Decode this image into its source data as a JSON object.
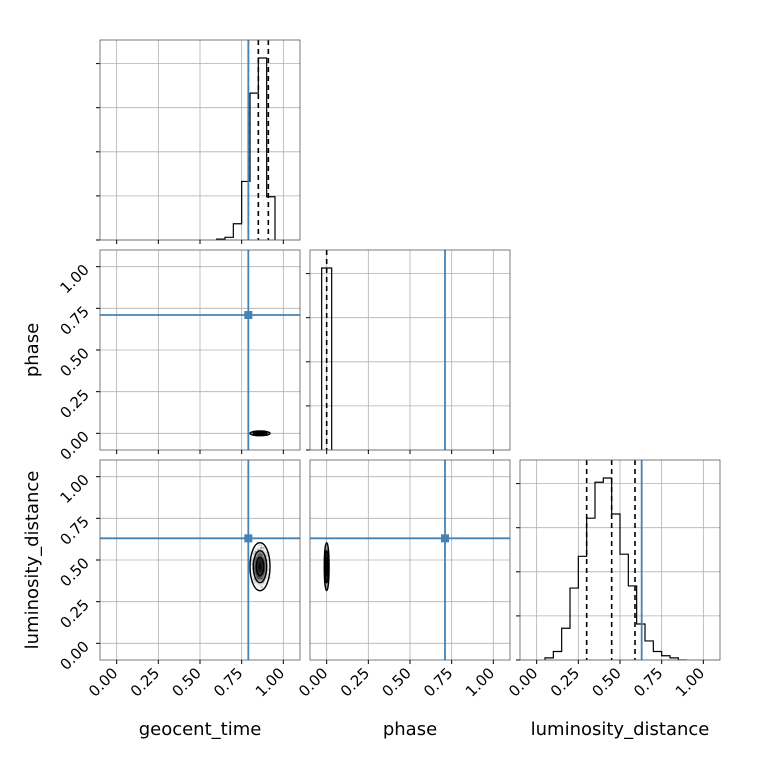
{
  "colors": {
    "truth": "#4682b4",
    "grid": "#b0b0b0",
    "ink": "#000000"
  },
  "chart_data": {
    "type": "corner",
    "parameters": [
      "geocent_time",
      "phase",
      "luminosity_distance"
    ],
    "axis_range": [
      -0.1,
      1.1
    ],
    "tick_values": [
      0.0,
      0.25,
      0.5,
      0.75,
      1.0
    ],
    "tick_labels": [
      "0.00",
      "0.25",
      "0.50",
      "0.75",
      "1.00"
    ],
    "grid": true,
    "truths": {
      "geocent_time": 0.79,
      "phase": 0.71,
      "luminosity_distance": 0.63
    },
    "histograms": {
      "geocent_time": {
        "bins": [
          0.6,
          0.65,
          0.7,
          0.75,
          0.8,
          0.85,
          0.9,
          0.95
        ],
        "counts": [
          1,
          3,
          18,
          65,
          163,
          202,
          48
        ],
        "quantiles": [
          0.79,
          0.85,
          0.91
        ]
      },
      "phase": {
        "bins": [
          -0.03,
          0.0,
          0.03
        ],
        "counts": [
          100,
          100
        ],
        "quantiles": [
          0.0
        ]
      },
      "luminosity_distance": {
        "bins": [
          0.05,
          0.1,
          0.15,
          0.2,
          0.25,
          0.3,
          0.35,
          0.4,
          0.45,
          0.5,
          0.55,
          0.6,
          0.65,
          0.7,
          0.75,
          0.8,
          0.85,
          0.9
        ],
        "counts": [
          1,
          4,
          15,
          34,
          49,
          67,
          84,
          86,
          69,
          50,
          35,
          17,
          9,
          4,
          2,
          1,
          0
        ],
        "quantiles": [
          0.3,
          0.45,
          0.59
        ]
      }
    },
    "densities": [
      {
        "x": "geocent_time",
        "y": "phase",
        "center": [
          0.86,
          0.0
        ],
        "spread": [
          0.05,
          0.005
        ]
      },
      {
        "x": "geocent_time",
        "y": "luminosity_distance",
        "center": [
          0.86,
          0.46
        ],
        "spread": [
          0.05,
          0.12
        ]
      },
      {
        "x": "phase",
        "y": "luminosity_distance",
        "center": [
          0.0,
          0.46
        ],
        "spread": [
          0.005,
          0.12
        ]
      }
    ]
  }
}
